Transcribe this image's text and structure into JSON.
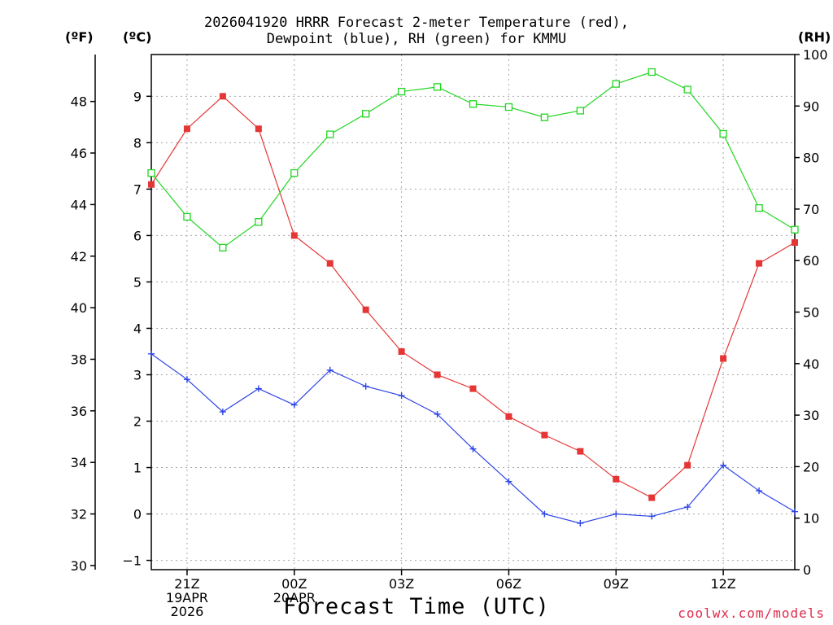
{
  "title": {
    "line1": "2026041920 HRRR Forecast 2-meter Temperature (red),",
    "line2": "Dewpoint (blue), RH (green) for KMMU"
  },
  "units": {
    "fahrenheit": "(ºF)",
    "celsius": "(ºC)",
    "rh": "(RH)"
  },
  "xlabel": "Forecast Time (UTC)",
  "credit": "coolwx.com/models",
  "colors": {
    "temperature": "#e53535",
    "dewpoint": "#2c44e8",
    "rh": "#22d522",
    "grid": "#a8a8a8"
  },
  "chart_data": {
    "type": "line",
    "title": "2026041920 HRRR Forecast 2-meter Temperature (red), Dewpoint (blue), RH (green) for KMMU",
    "xlabel": "Forecast Time (UTC)",
    "x": [
      20,
      21,
      22,
      23,
      24,
      25,
      26,
      27,
      28,
      29,
      30,
      31,
      32,
      33,
      34,
      35,
      36,
      37,
      38
    ],
    "xlim": [
      20,
      38
    ],
    "x_ticks": [
      {
        "x": 21,
        "lines": [
          "21Z",
          "19APR",
          "2026"
        ]
      },
      {
        "x": 24,
        "lines": [
          "00Z",
          "20APR"
        ]
      },
      {
        "x": 27,
        "lines": [
          "03Z"
        ]
      },
      {
        "x": 30,
        "lines": [
          "06Z"
        ]
      },
      {
        "x": 33,
        "lines": [
          "09Z"
        ]
      },
      {
        "x": 36,
        "lines": [
          "12Z"
        ]
      }
    ],
    "celsius_axis": {
      "ylim": [
        -1.2,
        9.9
      ],
      "ticks": [
        -1,
        0,
        1,
        2,
        3,
        4,
        5,
        6,
        7,
        8,
        9
      ]
    },
    "fahrenheit_axis": {
      "ylim": [
        29.84,
        49.82
      ],
      "ticks": [
        30,
        32,
        34,
        36,
        38,
        40,
        42,
        44,
        46,
        48
      ]
    },
    "rh_axis": {
      "ylim": [
        0,
        100
      ],
      "ticks": [
        0,
        10,
        20,
        30,
        40,
        50,
        60,
        70,
        80,
        90,
        100
      ]
    },
    "series": [
      {
        "name": "Temperature",
        "axis": "celsius",
        "marker": "filled-square",
        "values": [
          7.1,
          8.3,
          9.0,
          8.3,
          6.0,
          5.4,
          4.4,
          3.5,
          3.0,
          2.7,
          2.1,
          1.7,
          1.35,
          0.75,
          0.35,
          1.05,
          3.35,
          5.4,
          5.85
        ]
      },
      {
        "name": "Dewpoint",
        "axis": "celsius",
        "marker": "plus",
        "values": [
          3.45,
          2.9,
          2.2,
          2.7,
          2.35,
          3.1,
          2.75,
          2.55,
          2.15,
          1.4,
          0.7,
          0.0,
          -0.2,
          0.0,
          -0.05,
          0.15,
          1.05,
          0.5,
          0.05
        ]
      },
      {
        "name": "RH",
        "axis": "rh",
        "marker": "open-square",
        "values": [
          77,
          68.5,
          62.5,
          67.5,
          77,
          84.5,
          88.5,
          92.8,
          93.7,
          90.4,
          89.8,
          87.8,
          89.1,
          94.3,
          96.6,
          93.2,
          84.6,
          70.2,
          66
        ]
      }
    ]
  }
}
